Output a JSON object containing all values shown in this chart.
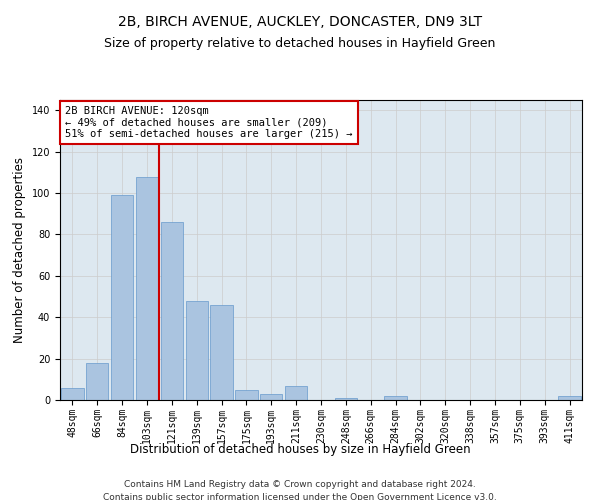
{
  "title1": "2B, BIRCH AVENUE, AUCKLEY, DONCASTER, DN9 3LT",
  "title2": "Size of property relative to detached houses in Hayfield Green",
  "xlabel": "Distribution of detached houses by size in Hayfield Green",
  "ylabel": "Number of detached properties",
  "categories": [
    "48sqm",
    "66sqm",
    "84sqm",
    "103sqm",
    "121sqm",
    "139sqm",
    "157sqm",
    "175sqm",
    "193sqm",
    "211sqm",
    "230sqm",
    "248sqm",
    "266sqm",
    "284sqm",
    "302sqm",
    "320sqm",
    "338sqm",
    "357sqm",
    "375sqm",
    "393sqm",
    "411sqm"
  ],
  "values": [
    6,
    18,
    99,
    108,
    86,
    48,
    46,
    5,
    3,
    7,
    0,
    1,
    0,
    2,
    0,
    0,
    0,
    0,
    0,
    0,
    2
  ],
  "bar_color": "#aac4e0",
  "bar_edge_color": "#6699cc",
  "vline_color": "#cc0000",
  "vline_pos": 4,
  "annotation_text": "2B BIRCH AVENUE: 120sqm\n← 49% of detached houses are smaller (209)\n51% of semi-detached houses are larger (215) →",
  "annotation_box_color": "#ffffff",
  "annotation_box_edge": "#cc0000",
  "ylim": [
    0,
    145
  ],
  "yticks": [
    0,
    20,
    40,
    60,
    80,
    100,
    120,
    140
  ],
  "grid_color": "#cccccc",
  "background_color": "#dde8f0",
  "footer1": "Contains HM Land Registry data © Crown copyright and database right 2024.",
  "footer2": "Contains public sector information licensed under the Open Government Licence v3.0.",
  "title1_fontsize": 10,
  "title2_fontsize": 9,
  "xlabel_fontsize": 8.5,
  "ylabel_fontsize": 8.5,
  "tick_fontsize": 7,
  "annotation_fontsize": 7.5,
  "footer_fontsize": 6.5
}
